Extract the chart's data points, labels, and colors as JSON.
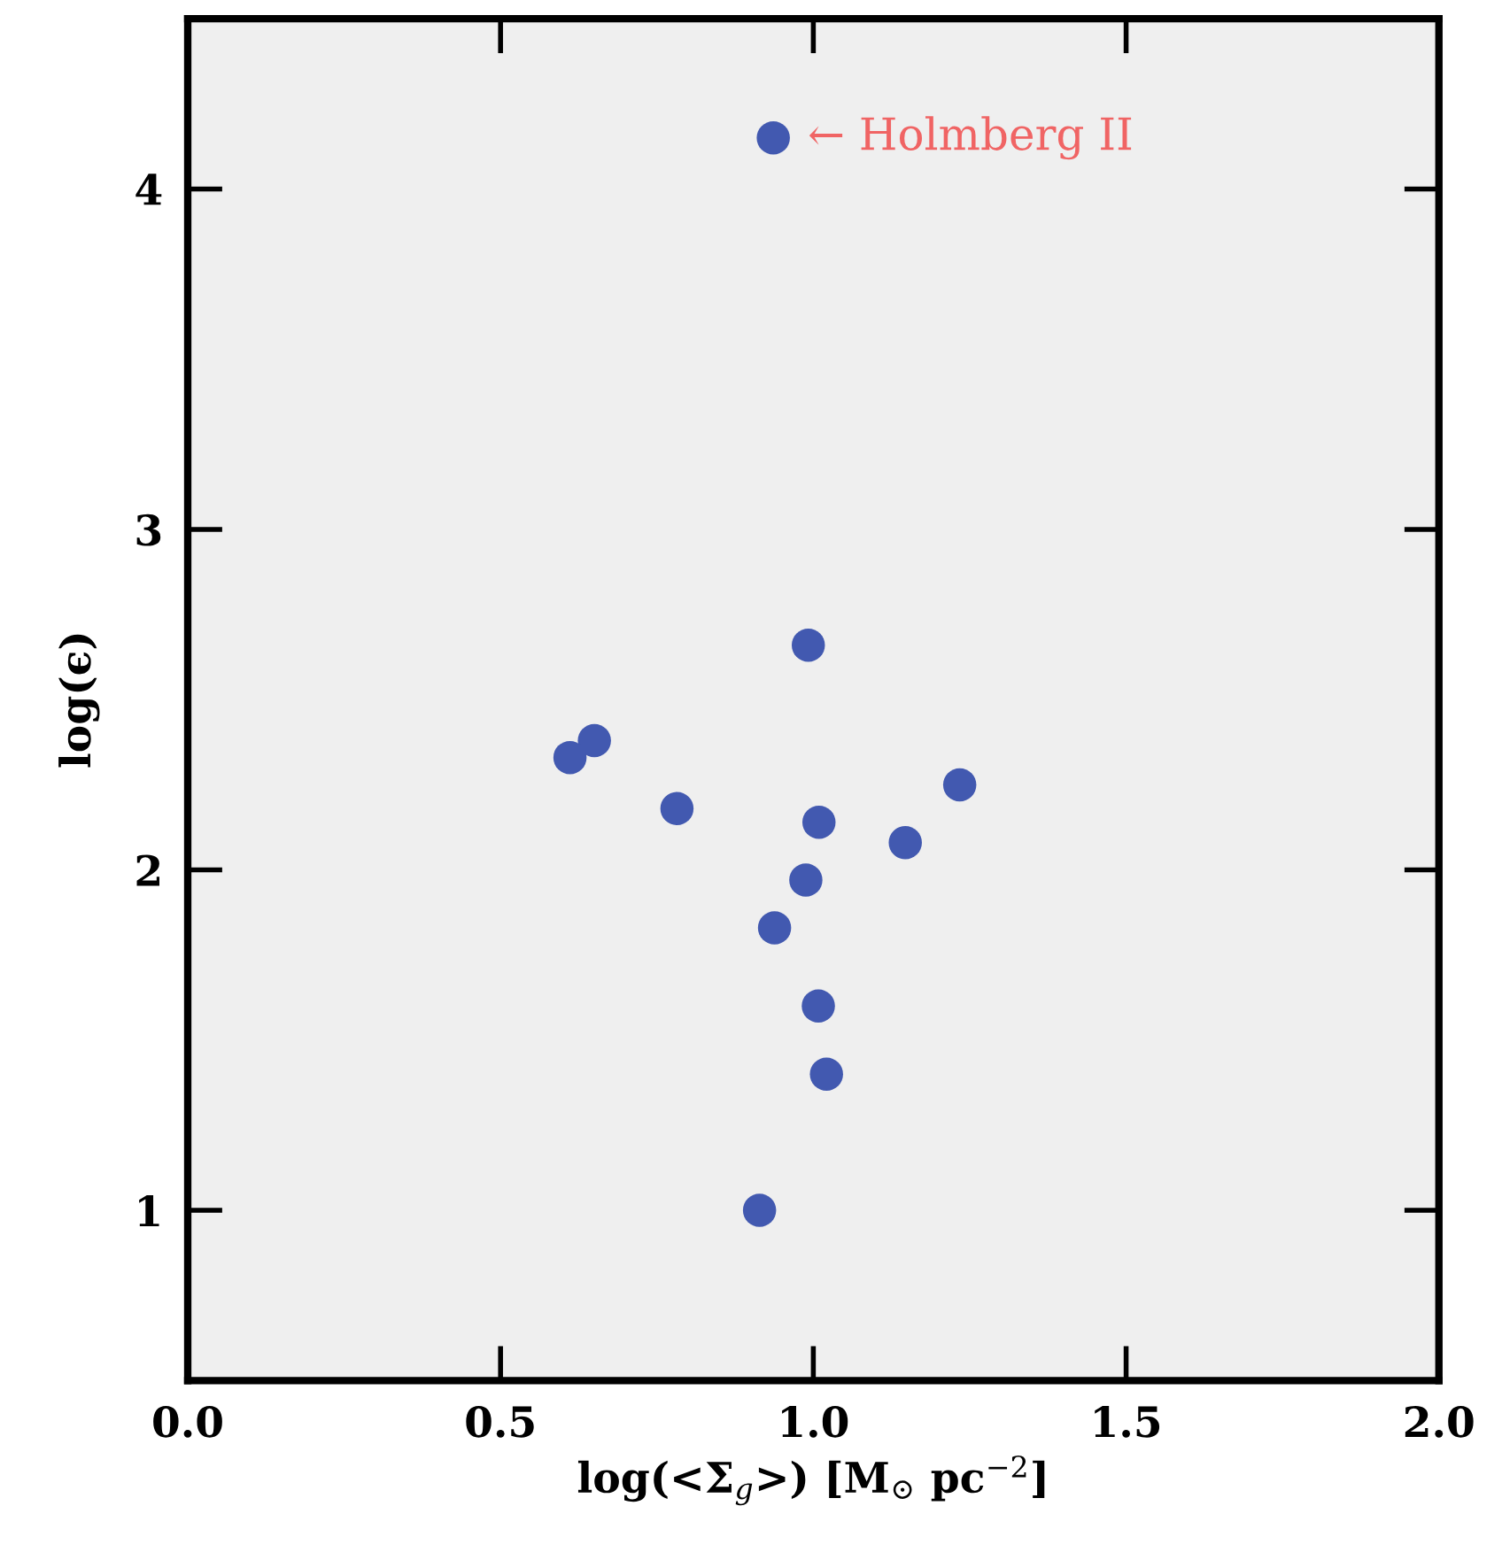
{
  "chart_data": {
    "type": "scatter",
    "xlabel": "log(<Σ$_{g}$>) [M$_{⊙}$ pc$^{−2}$]",
    "ylabel": "log(ϵ)",
    "x": [
      0.936,
      0.992,
      0.65,
      0.611,
      0.782,
      1.009,
      1.234,
      1.147,
      0.988,
      0.938,
      1.008,
      1.021,
      0.914
    ],
    "series": [
      {
        "color": "#4259b0",
        "values": [
          4.15,
          2.66,
          2.38,
          2.33,
          2.18,
          2.14,
          2.25,
          2.08,
          1.97,
          1.83,
          1.6,
          1.4,
          1.0
        ]
      }
    ],
    "xlim": [
      0.0,
      2.0
    ],
    "xticks": [
      {
        "value": 0,
        "label": "0.0"
      },
      0.5,
      {
        "value": 1,
        "label": "1.0"
      },
      1.5,
      {
        "value": 2,
        "label": "2.0"
      }
    ],
    "ylim": [
      0.5,
      4.5
    ],
    "yticks": [
      1,
      2,
      3,
      4
    ],
    "marker": "circle",
    "grid": false,
    "legend": false,
    "annotations": [
      {
        "text": "← Holmberg II",
        "x": 0.936,
        "y": 4.15
      }
    ]
  }
}
